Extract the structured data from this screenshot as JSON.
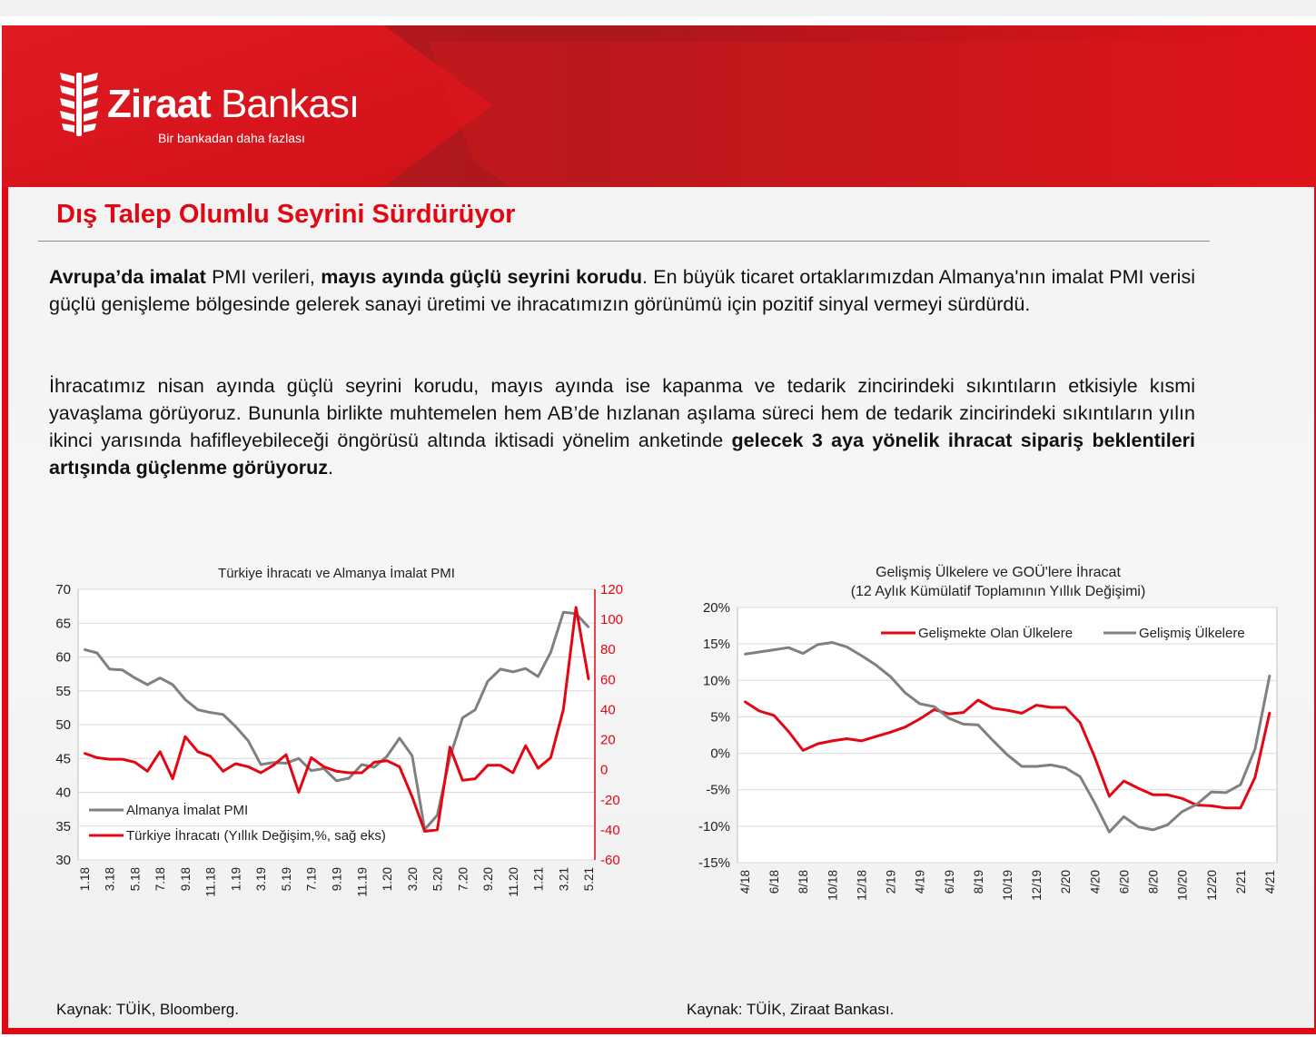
{
  "brand": {
    "name_bold": "Ziraat",
    "name_rest": " Bankası",
    "tagline": "Bir bankadan daha fazlası",
    "color_red": "#e30613",
    "color_dark_red": "#b01c1c"
  },
  "header": {
    "title": "Dış Talep Olumlu Seyrini Sürdürüyor"
  },
  "body": {
    "p1": [
      {
        "t": "Avrupa’da imalat",
        "b": true
      },
      {
        "t": " PMI verileri, ",
        "b": false
      },
      {
        "t": "mayıs ayında güçlü seyrini korudu",
        "b": true
      },
      {
        "t": ". En büyük ticaret ortaklarımızdan Almanya'nın imalat PMI verisi güçlü genişleme bölgesinde gelerek sanayi üretimi ve ihracatımızın görünümü için pozitif sinyal vermeyi sürdürdü.",
        "b": false
      }
    ],
    "p2": [
      {
        "t": "İhracatımız nisan ayında güçlü seyrini korudu, mayıs ayında ise kapanma ve tedarik zincirindeki sıkıntıların etkisiyle kısmi yavaşlama görüyoruz. Bununla birlikte muhtemelen hem AB’de hızlanan aşılama süreci hem de tedarik zincirindeki sıkıntıların yılın ikinci yarısında hafifleyebileceği öngörüsü altında iktisadi yönelim anketinde ",
        "b": false
      },
      {
        "t": "gelecek 3 aya yönelik ihracat sipariş beklentileri artışında güçlenme görüyoruz",
        "b": true
      },
      {
        "t": ".",
        "b": false
      }
    ]
  },
  "chart_data": [
    {
      "type": "line",
      "title": "Türkiye İhracatı ve Almanya İmalat PMI",
      "categories": [
        "1.18",
        "2.18",
        "3.18",
        "4.18",
        "5.18",
        "6.18",
        "7.18",
        "8.18",
        "9.18",
        "10.18",
        "11.18",
        "12.18",
        "1.19",
        "2.19",
        "3.19",
        "4.19",
        "5.19",
        "6.19",
        "7.19",
        "8.19",
        "9.19",
        "10.19",
        "11.19",
        "12.19",
        "1.20",
        "2.20",
        "3.20",
        "4.20",
        "5.20",
        "6.20",
        "7.20",
        "8.20",
        "9.20",
        "10.20",
        "11.20",
        "12.20",
        "1.21",
        "2.21",
        "3.21",
        "4.21",
        "5.21"
      ],
      "tick_labels": [
        "1.18",
        "3.18",
        "5.18",
        "7.18",
        "9.18",
        "11.18",
        "1.19",
        "3.19",
        "5.19",
        "7.19",
        "9.19",
        "11.19",
        "1.20",
        "3.20",
        "5.20",
        "7.20",
        "9.20",
        "11.20",
        "1.21",
        "3.21",
        "5.21"
      ],
      "ylim": [
        30,
        70
      ],
      "yticks": [
        "30",
        "35",
        "40",
        "45",
        "50",
        "55",
        "60",
        "65",
        "70"
      ],
      "y2lim": [
        -60,
        120
      ],
      "y2ticks": [
        "-60",
        "-40",
        "-20",
        "0",
        "20",
        "40",
        "60",
        "80",
        "100",
        "120"
      ],
      "legend": "bottom-left",
      "grid": true,
      "series": [
        {
          "name": "Almanya İmalat PMI",
          "axis": "left",
          "color": "#808080",
          "values": [
            61.1,
            60.6,
            58.2,
            58.1,
            56.9,
            55.9,
            56.9,
            55.9,
            53.7,
            52.2,
            51.8,
            51.5,
            49.7,
            47.6,
            44.1,
            44.4,
            44.3,
            45.0,
            43.2,
            43.5,
            41.7,
            42.1,
            44.1,
            43.7,
            45.3,
            48.0,
            45.4,
            34.5,
            36.6,
            45.2,
            51.0,
            52.2,
            56.4,
            58.2,
            57.8,
            58.3,
            57.1,
            60.7,
            66.6,
            66.4,
            64.4
          ]
        },
        {
          "name": "Türkiye İhracatı (Yıllık Değişim,%, sağ eks)",
          "axis": "right",
          "color": "#e30613",
          "values": [
            11,
            8,
            7,
            7,
            5,
            -1,
            12,
            -6,
            22,
            12,
            9,
            -1,
            4,
            2,
            -2,
            3,
            10,
            -15,
            8,
            2,
            -1,
            -2,
            -2,
            5,
            6,
            2,
            -18,
            -41,
            -40,
            15,
            -7,
            -6,
            3,
            3,
            -2,
            16,
            1,
            8,
            40,
            108,
            60
          ]
        }
      ]
    },
    {
      "type": "line",
      "title": "Gelişmiş Ülkelere ve GOÜ'lere İhracat",
      "subtitle": "(12 Aylık Kümülatif Toplamının Yıllık Değişimi)",
      "categories": [
        "4/18",
        "5/18",
        "6/18",
        "7/18",
        "8/18",
        "9/18",
        "10/18",
        "11/18",
        "12/18",
        "1/19",
        "2/19",
        "3/19",
        "4/19",
        "5/19",
        "6/19",
        "7/19",
        "8/19",
        "9/19",
        "10/19",
        "11/19",
        "12/19",
        "1/20",
        "2/20",
        "3/20",
        "4/20",
        "5/20",
        "6/20",
        "7/20",
        "8/20",
        "9/20",
        "10/20",
        "11/20",
        "12/20",
        "1/21",
        "2/21",
        "3/21",
        "4/21"
      ],
      "tick_labels": [
        "4/18",
        "6/18",
        "8/18",
        "10/18",
        "12/18",
        "2/19",
        "4/19",
        "6/19",
        "8/19",
        "10/19",
        "12/19",
        "2/20",
        "4/20",
        "6/20",
        "8/20",
        "10/20",
        "12/20",
        "2/21",
        "4/21"
      ],
      "ylim": [
        -15,
        20
      ],
      "yticks": [
        "-15%",
        "-10%",
        "-5%",
        "0%",
        "5%",
        "10%",
        "15%",
        "20%"
      ],
      "legend": "top",
      "grid": true,
      "series": [
        {
          "name": "Gelişmekte Olan Ülkelere",
          "color": "#e30613",
          "values": [
            7.1,
            5.8,
            5.2,
            3.0,
            0.4,
            1.3,
            1.7,
            2.0,
            1.7,
            2.3,
            2.9,
            3.6,
            4.7,
            6.0,
            5.4,
            5.6,
            7.3,
            6.2,
            5.9,
            5.5,
            6.6,
            6.3,
            6.3,
            4.2,
            -0.5,
            -5.9,
            -3.8,
            -4.8,
            -5.7,
            -5.7,
            -6.2,
            -7.1,
            -7.2,
            -7.5,
            -7.5,
            -3.3,
            5.6
          ]
        },
        {
          "name": "Gelişmiş Ülkelere",
          "color": "#808080",
          "values": [
            13.6,
            13.9,
            14.2,
            14.5,
            13.7,
            14.9,
            15.2,
            14.6,
            13.4,
            12.1,
            10.5,
            8.3,
            6.8,
            6.4,
            4.8,
            4.0,
            3.9,
            1.8,
            -0.2,
            -1.8,
            -1.8,
            -1.6,
            -2.0,
            -3.2,
            -6.8,
            -10.8,
            -8.7,
            -10.1,
            -10.5,
            -9.8,
            -8.0,
            -7.0,
            -5.3,
            -5.4,
            -4.3,
            0.6,
            10.7
          ]
        }
      ]
    }
  ],
  "sources": {
    "left": "Kaynak: TÜİK, Bloomberg.",
    "right": "Kaynak: TÜİK, Ziraat Bankası."
  }
}
